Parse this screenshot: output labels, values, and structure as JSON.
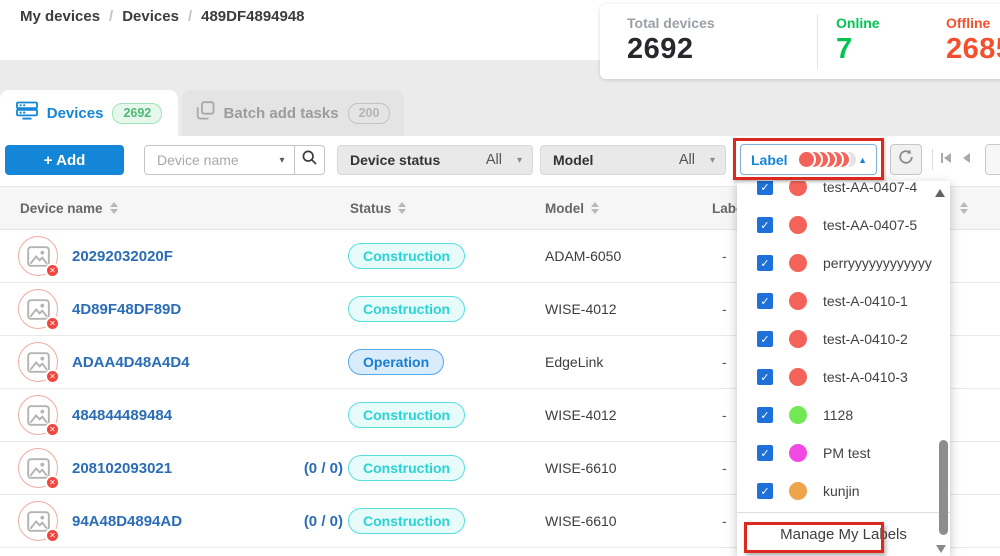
{
  "breadcrumb": {
    "separator": "/",
    "items": [
      "My devices",
      "Devices",
      "489DF4894948"
    ]
  },
  "stats": {
    "total_label": "Total devices",
    "total_value": "2692",
    "online_label": "Online",
    "online_value": "7",
    "offline_label": "Offline",
    "offline_value": "2685",
    "online_color": "#00c551",
    "offline_color": "#f4502e"
  },
  "tabs": {
    "devices": {
      "label": "Devices",
      "badge": "2692",
      "active": true
    },
    "batch": {
      "label": "Batch add tasks",
      "badge": "200",
      "active": false
    }
  },
  "toolbar": {
    "add_label": "+ Add",
    "search_placeholder": "Device name",
    "device_status": {
      "label": "Device status",
      "value": "All"
    },
    "model": {
      "label": "Model",
      "value": "All"
    },
    "label_filter": {
      "label": "Label",
      "dots": [
        "#f4635a",
        "#f4635a",
        "#f4635a",
        "#f4635a",
        "#f4635a",
        "#f4635a",
        "#e3e3e3"
      ]
    }
  },
  "table": {
    "columns": {
      "name": "Device name",
      "status": "Status",
      "model": "Model",
      "label": "Label"
    },
    "rows": [
      {
        "name": "20292032020F",
        "count": "",
        "status": "Construction",
        "status_type": "construction",
        "model": "ADAM-6050",
        "label": "-"
      },
      {
        "name": "4D89F48DF89D",
        "count": "",
        "status": "Construction",
        "status_type": "construction",
        "model": "WISE-4012",
        "label": "-"
      },
      {
        "name": "ADAA4D48A4D4",
        "count": "",
        "status": "Operation",
        "status_type": "operation",
        "model": "EdgeLink",
        "label": "-"
      },
      {
        "name": "484844489484",
        "count": "",
        "status": "Construction",
        "status_type": "construction",
        "model": "WISE-4012",
        "label": "-"
      },
      {
        "name": "208102093021",
        "count": "(0 / 0)",
        "status": "Construction",
        "status_type": "construction",
        "model": "WISE-6610",
        "label": "-"
      },
      {
        "name": "94A48D4894AD",
        "count": "(0 / 0)",
        "status": "Construction",
        "status_type": "construction",
        "model": "WISE-6610",
        "label": "-"
      }
    ]
  },
  "label_dropdown": {
    "items": [
      {
        "name": "test-AA-0407-4",
        "color": "#f4635a",
        "checked": true
      },
      {
        "name": "test-AA-0407-5",
        "color": "#f4635a",
        "checked": true
      },
      {
        "name": "perryyyyyyyyyyyy",
        "color": "#f4635a",
        "checked": true
      },
      {
        "name": "test-A-0410-1",
        "color": "#f4635a",
        "checked": true
      },
      {
        "name": "test-A-0410-2",
        "color": "#f4635a",
        "checked": true
      },
      {
        "name": "test-A-0410-3",
        "color": "#f4635a",
        "checked": true
      },
      {
        "name": "1128",
        "color": "#72e854",
        "checked": true
      },
      {
        "name": "PM test",
        "color": "#f04ae2",
        "checked": true
      },
      {
        "name": "kunjin",
        "color": "#efa44b",
        "checked": true
      }
    ],
    "manage_label": "Manage My Labels"
  },
  "colors": {
    "accent_blue": "#1386d8",
    "annotation_red": "#dd291d"
  }
}
